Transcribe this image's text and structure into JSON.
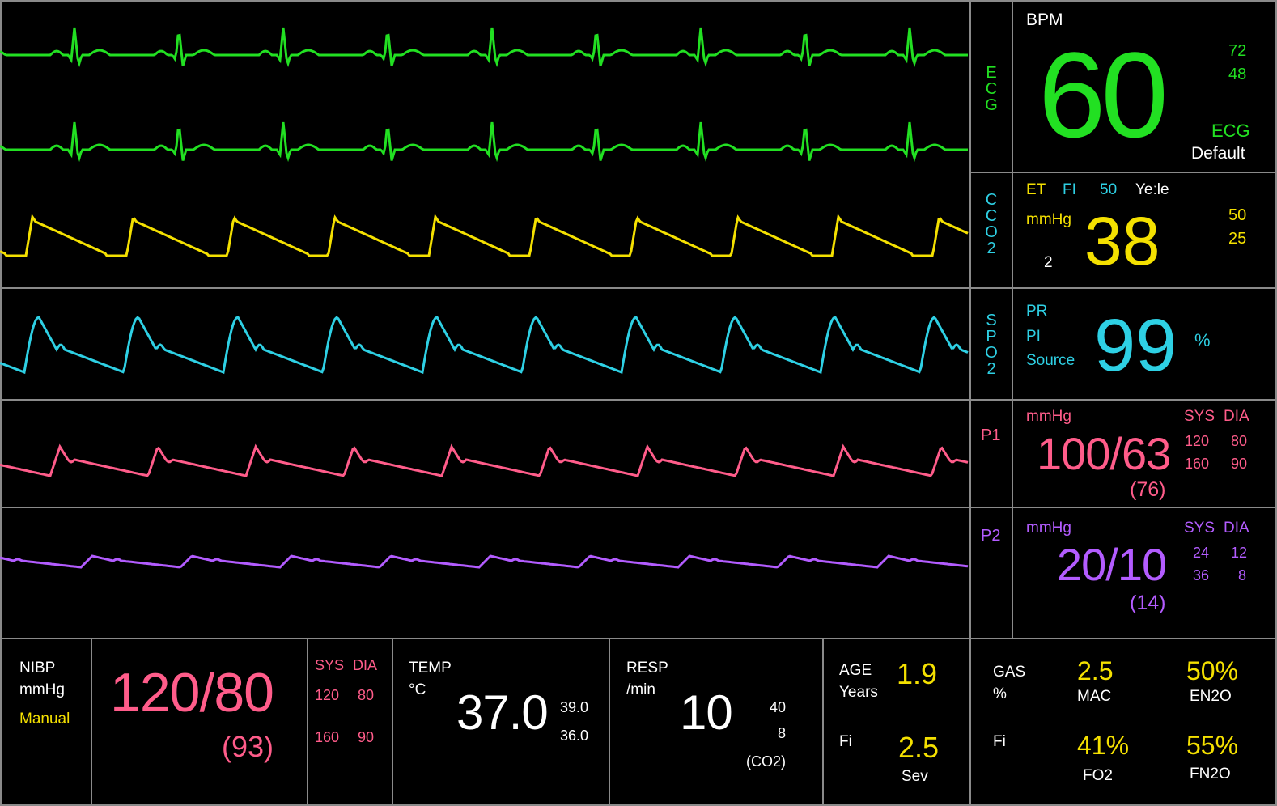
{
  "colors": {
    "ecg": "#22e022",
    "co2": "#f4e000",
    "spo2": "#2ed0e4",
    "p1": "#ff5c8a",
    "p2": "#b35cff",
    "white": "#ffffff",
    "grid": "#8a8a8a"
  },
  "waveforms": {
    "ecg_label": [
      "E",
      "C",
      "G"
    ],
    "co2_label": [
      "C",
      "C",
      "O",
      "2"
    ],
    "spo2_label": [
      "S",
      "P",
      "O",
      "2"
    ],
    "p1_label": "P1",
    "p2_label": "P2"
  },
  "ecg_panel": {
    "title": "BPM",
    "value": "60",
    "alarm_high": "72",
    "alarm_low": "48",
    "source": "ECG",
    "mode": "Default"
  },
  "co2_panel": {
    "et": "ET",
    "fi": "FI",
    "fi_value": "50",
    "extra": "Yeːle",
    "unit": "mmHg",
    "value": "38",
    "small_value": "2",
    "alarm_high": "50",
    "alarm_low": "25"
  },
  "spo2_panel": {
    "pr": "PR",
    "pi": "PI",
    "source": "Source",
    "value": "99",
    "unit": "%"
  },
  "p1_panel": {
    "unit": "mmHg",
    "sys": "SYS",
    "dia": "DIA",
    "value": "100/63",
    "mean": "(76)",
    "sys_low": "120",
    "dia_low": "80",
    "sys_high": "160",
    "dia_high": "90"
  },
  "p2_panel": {
    "unit": "mmHg",
    "sys": "SYS",
    "dia": "DIA",
    "value": "20/10",
    "mean": "(14)",
    "sys_low": "24",
    "dia_low": "12",
    "sys_high": "36",
    "dia_high": "8"
  },
  "nibp": {
    "title": "NIBP",
    "unit": "mmHg",
    "mode": "Manual",
    "value": "120/80",
    "mean": "(93)",
    "sys": "SYS",
    "dia": "DIA",
    "sys_low": "120",
    "dia_low": "80",
    "sys_high": "160",
    "dia_high": "90"
  },
  "temp": {
    "title": "TEMP",
    "unit": "°C",
    "value": "37.0",
    "high": "39.0",
    "low": "36.0"
  },
  "resp": {
    "title": "RESP",
    "unit": "/min",
    "value": "10",
    "high": "40",
    "low": "8",
    "source": "(CO2)"
  },
  "age": {
    "title": "AGE",
    "unit": "Years",
    "value": "1.9",
    "fi": "Fi",
    "fi_value": "2.5",
    "agent": "Sev"
  },
  "gas": {
    "title": "GAS",
    "unit": "%",
    "fi": "Fi",
    "mac_value": "2.5",
    "mac": "MAC",
    "en2o_value": "50%",
    "en2o": "EN2O",
    "fo2_value": "41%",
    "fo2": "FO2",
    "fn2o_value": "55%",
    "fn2o": "FN2O"
  }
}
